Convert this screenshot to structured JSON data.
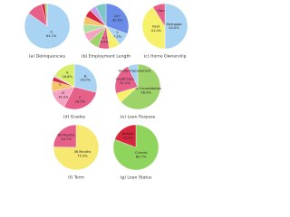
{
  "chart_data": [
    {
      "type": "pie",
      "caption": "(a) Delinquencies",
      "categories": [
        "0",
        null,
        null,
        null
      ],
      "values": [
        84.7,
        11.2,
        2.6,
        1.5
      ],
      "value_labels": [
        "84.7%",
        null,
        null,
        null
      ],
      "colors": [
        "#a9d3f2",
        "#e6608a",
        "#d7263d",
        "#9ed36a"
      ]
    },
    {
      "type": "pie",
      "caption": "(b) Employment Length",
      "categories": [
        "10+",
        "2",
        null,
        "< 1",
        null,
        null,
        null,
        null,
        null,
        null,
        null
      ],
      "values": [
        30.5,
        9.2,
        8.1,
        8.0,
        7.3,
        6.8,
        6.4,
        5.8,
        5.5,
        4.6,
        7.8
      ],
      "value_labels": [
        "30.5%",
        "9.2%",
        null,
        "8.0%",
        null,
        null,
        null,
        null,
        null,
        null,
        null
      ],
      "colors": [
        "#6b8be8",
        "#a9d3f2",
        "#f6f06a",
        "#e6608a",
        "#9ed36a",
        "#f5a3c0",
        "#b0e0a0",
        "#f7c36a",
        "#d7263d",
        "#c9a0e6",
        "#7cc6c6"
      ]
    },
    {
      "type": "pie",
      "caption": "(c) Home Ownership",
      "categories": [
        "Mortgage",
        "Rent",
        "Own"
      ],
      "values": [
        50.0,
        41.0,
        8.9
      ],
      "value_labels": [
        "50.0%",
        "41.0%",
        null
      ],
      "colors": [
        "#a9d3f2",
        "#f6f06a",
        "#e6608a"
      ]
    },
    {
      "type": "pie",
      "caption": "(d) Grades",
      "categories": [
        "B",
        "C",
        "D",
        "E",
        null,
        null,
        "A"
      ],
      "values": [
        29.0,
        28.5,
        14.3,
        7.3,
        3.1,
        1.0,
        16.8
      ],
      "value_labels": [
        "29.0%",
        "28.5%",
        "14.3%",
        null,
        null,
        null,
        "16.8%"
      ],
      "colors": [
        "#a9d3f2",
        "#e6608a",
        "#f5a3c0",
        "#f7c36a",
        "#d7263d",
        "#c9a0e6",
        "#d7ee6a"
      ]
    },
    {
      "type": "pie",
      "caption": "(e) Loan Purpose",
      "categories": [
        "Debt Consolidation",
        null,
        "Credit Card",
        "Home Improvement"
      ],
      "values": [
        58.9,
        6.4,
        21.1,
        6.6
      ],
      "value_labels": [
        "58.9%",
        null,
        "21.1%",
        null
      ],
      "colors": [
        "#9ed36a",
        "#f6f06a",
        "#e6608a",
        "#a9d3f2"
      ]
    },
    {
      "type": "pie",
      "caption": "(f) Term",
      "categories": [
        "36 Months",
        "60 Months"
      ],
      "values": [
        75.3,
        24.7
      ],
      "value_labels": [
        "75.3%",
        "24.7%"
      ],
      "colors": [
        "#f6e870",
        "#e6608a"
      ]
    },
    {
      "type": "pie",
      "caption": "(g) Loan Status",
      "categories": [
        "Current",
        "Default"
      ],
      "values": [
        80.7,
        19.3
      ],
      "value_labels": [
        "80.7%",
        "19.3%"
      ],
      "colors": [
        "#8fd45c",
        "#d7263d"
      ]
    }
  ]
}
